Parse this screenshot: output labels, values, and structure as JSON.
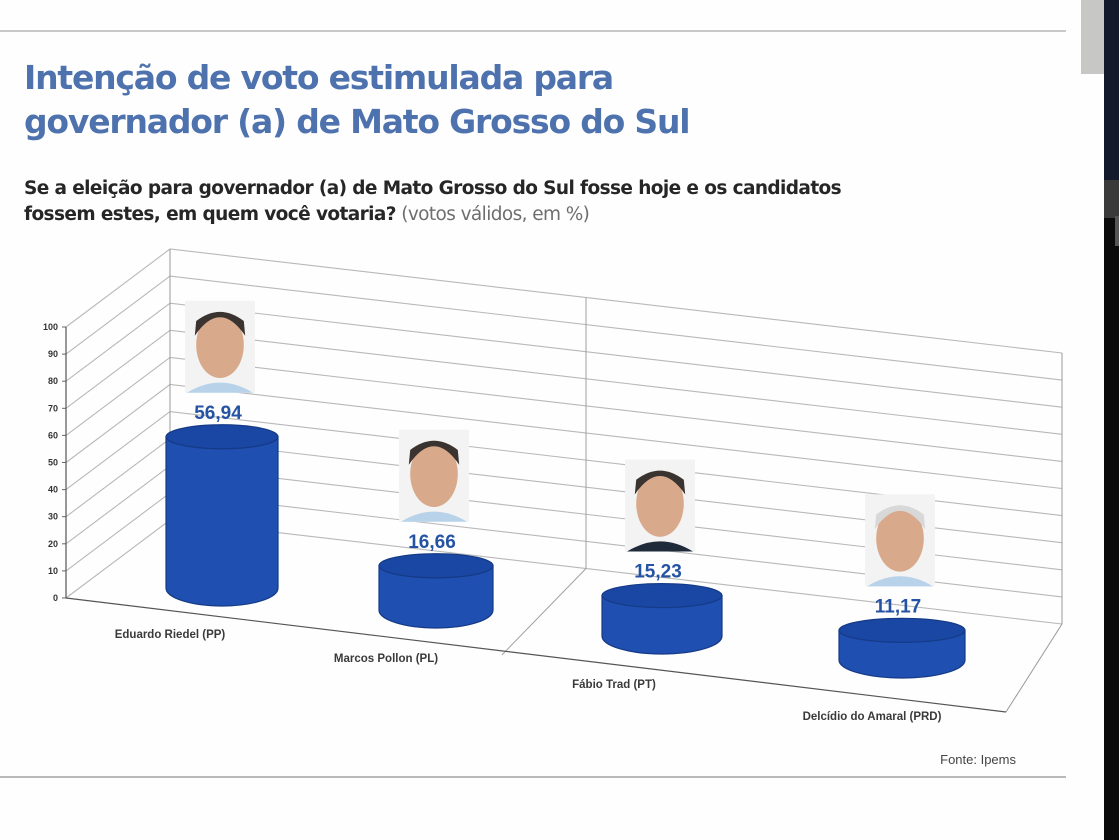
{
  "header": {
    "title_line1": "Intenção de voto estimulada para",
    "title_line2": "governador (a) de Mato Grosso do Sul",
    "question_line1": "Se a eleição para governador (a) de Mato Grosso do Sul fosse hoje e os candidatos",
    "question_line2": "fossem estes, em quem você votaria?",
    "question_note": "(votos válidos, em %)"
  },
  "footer": {
    "source": "Fonte: Ipems"
  },
  "colors": {
    "title": "#4e72ad",
    "cylinder": "#1f4fb0",
    "cylinder_top": "#1a47a3",
    "value_label": "#2553a3",
    "grid": "#b8b8b8"
  },
  "chart_data": {
    "type": "bar",
    "style": "3d-cylinder",
    "title": "Intenção de voto estimulada para governador (a) de Mato Grosso do Sul",
    "subtitle": "Se a eleição para governador (a) de Mato Grosso do Sul fosse hoje e os candidatos fossem estes, em quem você votaria? (votos válidos, em %)",
    "xlabel": "",
    "ylabel": "",
    "ylim": [
      0,
      100
    ],
    "yticks": [
      0,
      10,
      20,
      30,
      40,
      50,
      60,
      70,
      80,
      90,
      100
    ],
    "grid": true,
    "legend": "none",
    "categories": [
      "Eduardo Riedel (PP)",
      "Marcos Pollon (PL)",
      "Fábio Trad (PT)",
      "Delcídio do Amaral (PRD)"
    ],
    "values": [
      56.94,
      16.66,
      15.23,
      11.17
    ],
    "value_labels": [
      "56,94",
      "16,66",
      "15,23",
      "11,17"
    ],
    "candidate_photos": [
      "photo-eduardo-riedel",
      "photo-marcos-pollon",
      "photo-fabio-trad",
      "photo-delcidio-do-amaral"
    ],
    "source": "Fonte: Ipems"
  }
}
